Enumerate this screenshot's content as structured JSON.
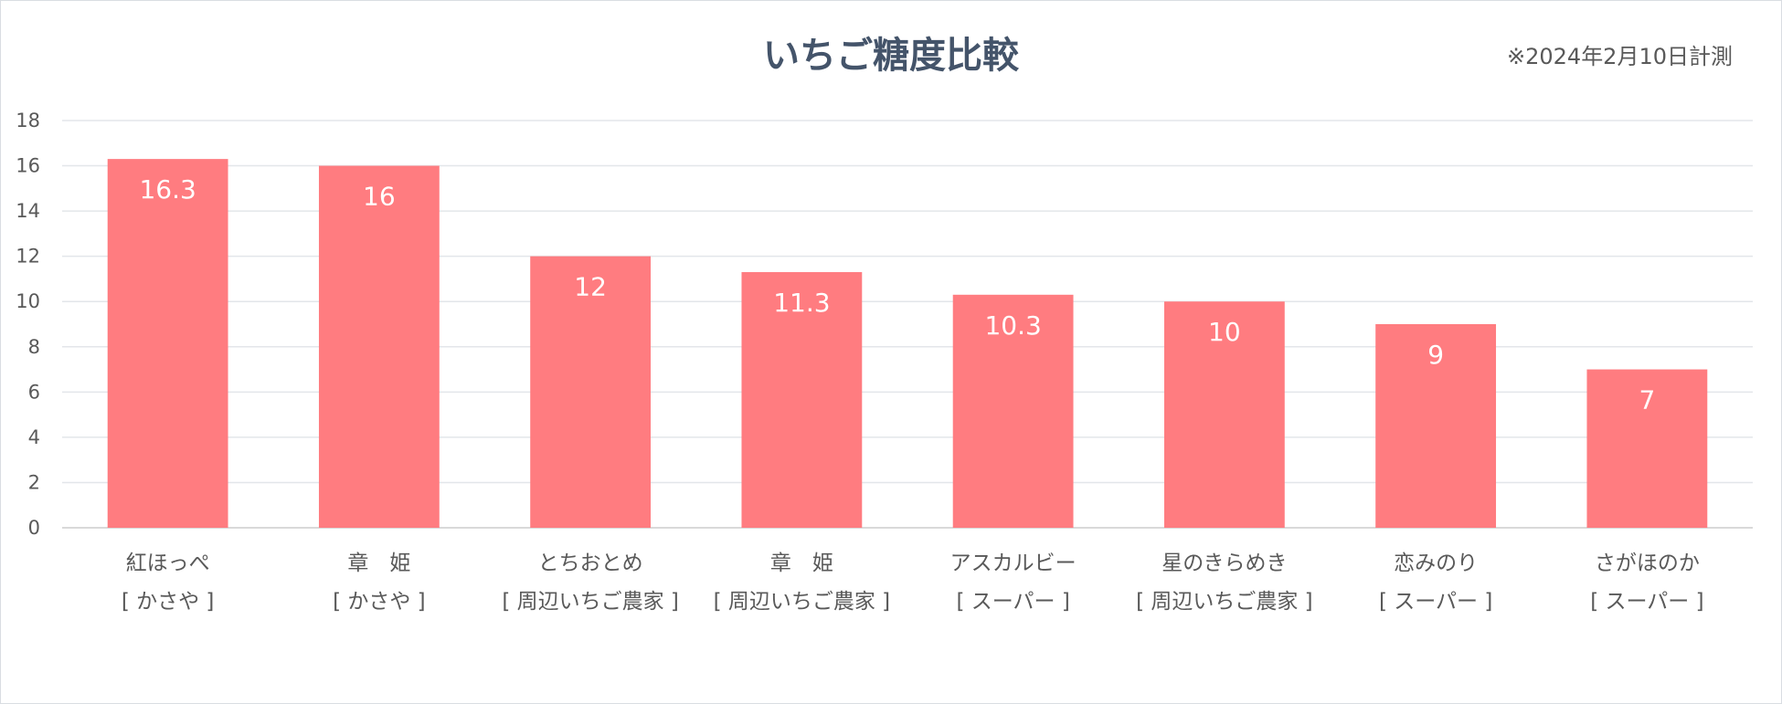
{
  "chart_data": {
    "type": "bar",
    "title": "いちご糖度比較",
    "note": "※2024年2月10日計測",
    "categories": [
      {
        "line1": "紅ほっぺ",
        "line2": "[ かさや ]"
      },
      {
        "line1": "章　姫",
        "line2": "[ かさや ]"
      },
      {
        "line1": "とちおとめ",
        "line2": "[ 周辺いちご農家 ]"
      },
      {
        "line1": "章　姫",
        "line2": "[ 周辺いちご農家 ]"
      },
      {
        "line1": "アスカルビー",
        "line2": "[ スーパー ]"
      },
      {
        "line1": "星のきらめき",
        "line2": "[ 周辺いちご農家 ]"
      },
      {
        "line1": "恋みのり",
        "line2": "[ スーパー ]"
      },
      {
        "line1": "さがほのか",
        "line2": "[ スーパー ]"
      }
    ],
    "values": [
      16.3,
      16,
      12,
      11.3,
      10.3,
      10,
      9,
      7
    ],
    "data_labels": [
      "16.3",
      "16",
      "12",
      "11.3",
      "10.3",
      "10",
      "9",
      "7"
    ],
    "y_ticks": [
      "0",
      "2",
      "4",
      "6",
      "8",
      "10",
      "12",
      "14",
      "16",
      "18"
    ],
    "ylim": [
      0,
      18
    ],
    "xlabel": "",
    "ylabel": "",
    "grid": true,
    "legend": "none",
    "colors": {
      "bar": "#ff7c80",
      "title": "#44546a",
      "text": "#595959",
      "grid": "#e3e6ea"
    }
  }
}
